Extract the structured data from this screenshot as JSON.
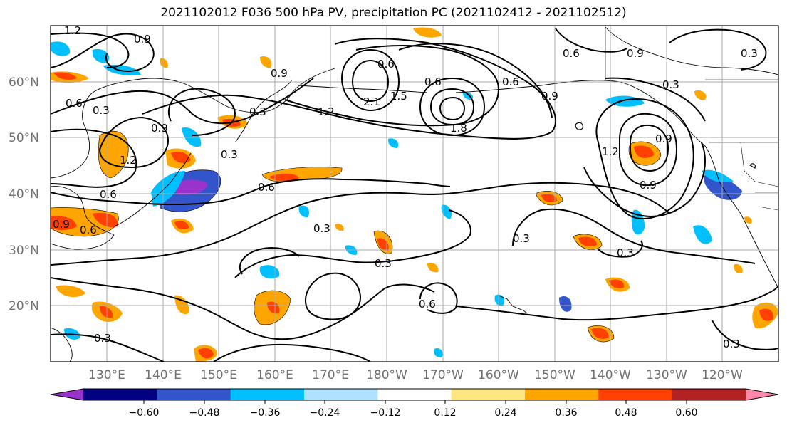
{
  "title": "2021102012 F036 500 hPa PV, precipitation PC (2021102412 - 2021102512)",
  "map": {
    "projection": "equirectangular, Pacific-centered",
    "lon_range_east": [
      120,
      245
    ],
    "lat_range": [
      10,
      70
    ],
    "lon_ticks": [
      "130°E",
      "140°E",
      "150°E",
      "160°E",
      "170°E",
      "180°W",
      "170°W",
      "160°W",
      "150°W",
      "140°W",
      "130°W",
      "120°W"
    ],
    "lat_ticks": [
      "60°N",
      "50°N",
      "40°N",
      "30°N",
      "20°N"
    ],
    "grid": true
  },
  "pv_contour_labels": [
    "1.2",
    "0.9",
    "0.6",
    "0.3",
    "0.9",
    "1.2",
    "0.6",
    "0.9",
    "0.6",
    "0.3",
    "0.3",
    "0.6",
    "0.3",
    "1.2",
    "0.9",
    "0.6",
    "2.1",
    "1.5",
    "0.6",
    "0.6",
    "1.8",
    "0.9",
    "0.6",
    "0.9",
    "0.3",
    "0.3",
    "0.3",
    "0.6",
    "0.3",
    "0.3",
    "0.9",
    "1.2",
    "0.9",
    "0.3",
    "0.3"
  ],
  "colorbar": {
    "ticks": [
      "−0.60",
      "−0.48",
      "−0.36",
      "−0.24",
      "−0.12",
      "0.12",
      "0.24",
      "0.36",
      "0.48",
      "0.60"
    ],
    "colors": [
      "#9933cc",
      "#000080",
      "#3355cc",
      "#00bfff",
      "#b0e2ff",
      "#ffffff",
      "#ffe680",
      "#ffa500",
      "#ff4000",
      "#b22222",
      "#ff88aa"
    ],
    "extend": "both"
  }
}
